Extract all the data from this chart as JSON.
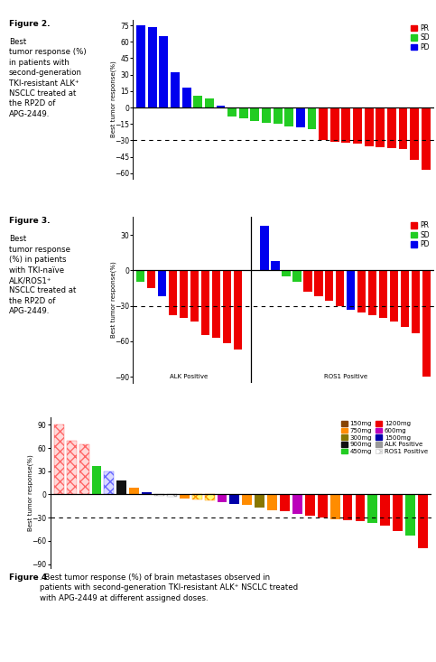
{
  "fig2": {
    "ylabel": "Best tumor response(%)",
    "ylim": [
      -65,
      80
    ],
    "yticks": [
      -60,
      -45,
      -30,
      -15,
      0,
      15,
      30,
      45,
      60,
      75
    ],
    "dashed_line": -30,
    "bars": [
      {
        "value": 75,
        "color": "#0000EE"
      },
      {
        "value": 73,
        "color": "#0000EE"
      },
      {
        "value": 65,
        "color": "#0000EE"
      },
      {
        "value": 32,
        "color": "#0000EE"
      },
      {
        "value": 18,
        "color": "#0000EE"
      },
      {
        "value": 11,
        "color": "#22CC22"
      },
      {
        "value": 8,
        "color": "#22CC22"
      },
      {
        "value": 2,
        "color": "#0000EE"
      },
      {
        "value": -8,
        "color": "#22CC22"
      },
      {
        "value": -10,
        "color": "#22CC22"
      },
      {
        "value": -12,
        "color": "#22CC22"
      },
      {
        "value": -14,
        "color": "#22CC22"
      },
      {
        "value": -15,
        "color": "#22CC22"
      },
      {
        "value": -17,
        "color": "#22CC22"
      },
      {
        "value": -18,
        "color": "#0000EE"
      },
      {
        "value": -20,
        "color": "#22CC22"
      },
      {
        "value": -30,
        "color": "#EE0000"
      },
      {
        "value": -31,
        "color": "#EE0000"
      },
      {
        "value": -32,
        "color": "#EE0000"
      },
      {
        "value": -33,
        "color": "#EE0000"
      },
      {
        "value": -35,
        "color": "#EE0000"
      },
      {
        "value": -36,
        "color": "#EE0000"
      },
      {
        "value": -37,
        "color": "#EE0000"
      },
      {
        "value": -38,
        "color": "#EE0000"
      },
      {
        "value": -48,
        "color": "#EE0000"
      },
      {
        "value": -57,
        "color": "#EE0000"
      }
    ],
    "legend": [
      {
        "label": "PR",
        "color": "#EE0000"
      },
      {
        "label": "SD",
        "color": "#22CC22"
      },
      {
        "label": "PD",
        "color": "#0000EE"
      }
    ],
    "fig_label_bold": "Figure 2.",
    "fig_caption": " Best\ntumor response (%)\nin patients with\nsecond-generation\nTKI-resistant ALK⁺\nNSCLC treated at\nthe RP2D of\nAPG-2449."
  },
  "fig3": {
    "ylabel": "Best tumor response(%)",
    "ylim": [
      -95,
      45
    ],
    "yticks": [
      -90,
      -60,
      -30,
      0,
      30
    ],
    "dashed_line": -30,
    "alk_bars": [
      {
        "value": -10,
        "color": "#22CC22"
      },
      {
        "value": -15,
        "color": "#EE0000"
      },
      {
        "value": -22,
        "color": "#0000EE"
      },
      {
        "value": -38,
        "color": "#EE0000"
      },
      {
        "value": -40,
        "color": "#EE0000"
      },
      {
        "value": -43,
        "color": "#EE0000"
      },
      {
        "value": -55,
        "color": "#EE0000"
      },
      {
        "value": -57,
        "color": "#EE0000"
      },
      {
        "value": -62,
        "color": "#EE0000"
      },
      {
        "value": -67,
        "color": "#EE0000"
      }
    ],
    "ros1_bars": [
      {
        "value": 38,
        "color": "#0000EE"
      },
      {
        "value": 8,
        "color": "#0000EE"
      },
      {
        "value": -5,
        "color": "#22CC22"
      },
      {
        "value": -10,
        "color": "#22CC22"
      },
      {
        "value": -18,
        "color": "#EE0000"
      },
      {
        "value": -22,
        "color": "#EE0000"
      },
      {
        "value": -26,
        "color": "#EE0000"
      },
      {
        "value": -30,
        "color": "#EE0000"
      },
      {
        "value": -33,
        "color": "#0000EE"
      },
      {
        "value": -36,
        "color": "#EE0000"
      },
      {
        "value": -38,
        "color": "#EE0000"
      },
      {
        "value": -40,
        "color": "#EE0000"
      },
      {
        "value": -43,
        "color": "#EE0000"
      },
      {
        "value": -48,
        "color": "#EE0000"
      },
      {
        "value": -53,
        "color": "#EE0000"
      },
      {
        "value": -90,
        "color": "#EE0000"
      }
    ],
    "legend": [
      {
        "label": "PR",
        "color": "#EE0000"
      },
      {
        "label": "SD",
        "color": "#22CC22"
      },
      {
        "label": "PD",
        "color": "#0000EE"
      }
    ],
    "fig_label_bold": "Figure 3.",
    "fig_caption": " Best\ntumor response\n(%) in patients\nwith TKI-naïve\nALK/ROS1⁺\nNSCLC treated at\nthe RP2D of\nAPG-2449."
  },
  "fig4": {
    "ylabel": "Best tumor response(%)",
    "ylim": [
      -95,
      100
    ],
    "yticks": [
      -90,
      -60,
      -30,
      0,
      30,
      60,
      90
    ],
    "dashed_line": -30,
    "bars": [
      {
        "value": 90,
        "color": "#FF6666",
        "hatch": "xxx"
      },
      {
        "value": 70,
        "color": "#FF6666",
        "hatch": "xxx"
      },
      {
        "value": 65,
        "color": "#FF6666",
        "hatch": "xxx"
      },
      {
        "value": 37,
        "color": "#22CC22",
        "hatch": null
      },
      {
        "value": 30,
        "color": "#6666FF",
        "hatch": "xxx"
      },
      {
        "value": 18,
        "color": "#111111",
        "hatch": null
      },
      {
        "value": 9,
        "color": "#FF8C00",
        "hatch": null
      },
      {
        "value": 3,
        "color": "#0000AA",
        "hatch": null
      },
      {
        "value": -2,
        "color": "#AAAAAA",
        "hatch": "xxx"
      },
      {
        "value": -3,
        "color": "#AAAAAA",
        "hatch": "xxx"
      },
      {
        "value": -5,
        "color": "#FF8C00",
        "hatch": null
      },
      {
        "value": -6,
        "color": "#FF8C00",
        "hatch": "xxx"
      },
      {
        "value": -8,
        "color": "#FF8C00",
        "hatch": "xxx"
      },
      {
        "value": -10,
        "color": "#BB00BB",
        "hatch": null
      },
      {
        "value": -12,
        "color": "#0000AA",
        "hatch": null
      },
      {
        "value": -14,
        "color": "#FF8C00",
        "hatch": null
      },
      {
        "value": -17,
        "color": "#887700",
        "hatch": null
      },
      {
        "value": -20,
        "color": "#FF8C00",
        "hatch": null
      },
      {
        "value": -22,
        "color": "#EE0000",
        "hatch": null
      },
      {
        "value": -25,
        "color": "#BB00BB",
        "hatch": null
      },
      {
        "value": -27,
        "color": "#EE0000",
        "hatch": null
      },
      {
        "value": -30,
        "color": "#EE0000",
        "hatch": null
      },
      {
        "value": -32,
        "color": "#FF8C00",
        "hatch": null
      },
      {
        "value": -33,
        "color": "#EE0000",
        "hatch": null
      },
      {
        "value": -35,
        "color": "#EE0000",
        "hatch": null
      },
      {
        "value": -37,
        "color": "#22CC22",
        "hatch": null
      },
      {
        "value": -40,
        "color": "#EE0000",
        "hatch": null
      },
      {
        "value": -47,
        "color": "#EE0000",
        "hatch": null
      },
      {
        "value": -53,
        "color": "#22CC22",
        "hatch": null
      },
      {
        "value": -70,
        "color": "#EE0000",
        "hatch": null
      }
    ],
    "legend_col1": [
      {
        "label": "150mg",
        "color": "#884400"
      },
      {
        "label": "300mg",
        "color": "#887700"
      },
      {
        "label": "450mg",
        "color": "#22CC22"
      },
      {
        "label": "600mg",
        "color": "#BB00BB"
      },
      {
        "label": "ALK Positive",
        "color": "#999999",
        "hatch": null
      }
    ],
    "legend_col2": [
      {
        "label": "750mg",
        "color": "#FF8C00"
      },
      {
        "label": "900mg",
        "color": "#111111"
      },
      {
        "label": "1200mg",
        "color": "#EE0000"
      },
      {
        "label": "1500mg",
        "color": "#0000AA"
      },
      {
        "label": "ROS1 Positive",
        "color": "#CCCCCC",
        "hatch": "xxx"
      }
    ],
    "fig_label_bold": "Figure 4",
    "fig_caption": ". Best tumor response (%) of brain metastases observed in\npatients with second-generation TKI-resistant ALK⁺ NSCLC treated\nwith APG-2449 at different assigned doses."
  }
}
